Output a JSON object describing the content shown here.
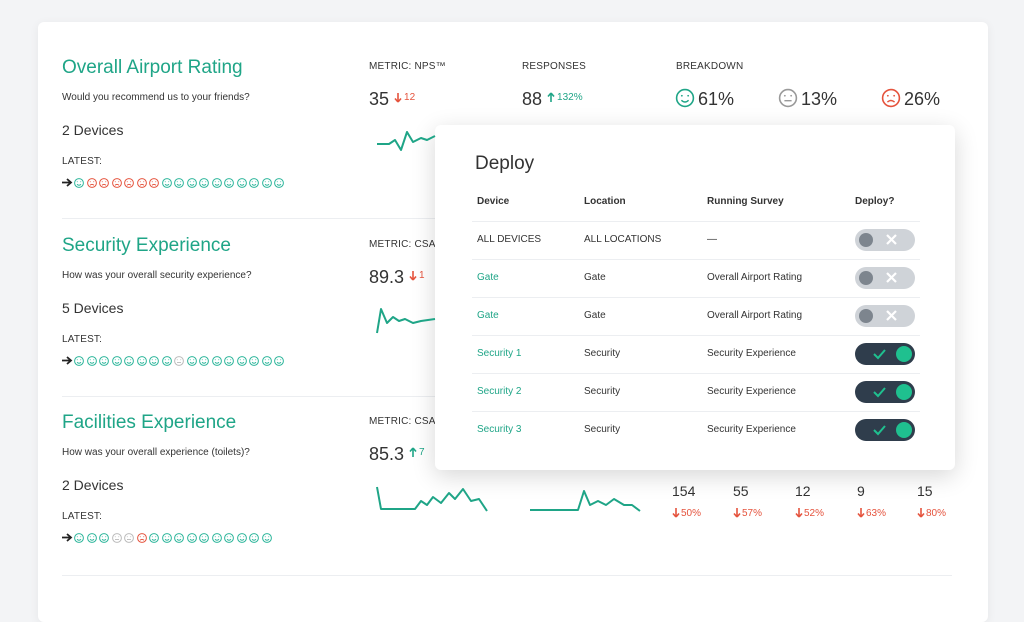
{
  "cards": [
    {
      "title": "Overall Airport Rating",
      "question": "Would you recommend us to your friends?",
      "devices": "2 Devices",
      "latest_label": "LATEST:",
      "latest": [
        "#2bb59a",
        "#e5533d",
        "#e5533d",
        "#e5533d",
        "#e5533d",
        "#e5533d",
        "#e5533d",
        "#2bb59a",
        "#2bb59a",
        "#2bb59a",
        "#2bb59a",
        "#2bb59a",
        "#2bb59a",
        "#2bb59a",
        "#2bb59a",
        "#2bb59a",
        "#2bb59a"
      ],
      "metric_label": "METRIC: NPS™",
      "metric_value": "35",
      "metric_change": "12",
      "metric_trend": "down",
      "responses_label": "RESPONSES",
      "responses_value": "88",
      "responses_change": "132%",
      "responses_trend": "up",
      "breakdown_label": "BREAKDOWN",
      "breakdown": [
        "61%",
        "13%",
        "26%"
      ]
    },
    {
      "title": "Security Experience",
      "question": "How was your overall security experience?",
      "devices": "5 Devices",
      "latest_label": "LATEST:",
      "latest": [
        "#2bb59a",
        "#2bb59a",
        "#2bb59a",
        "#2bb59a",
        "#2bb59a",
        "#2bb59a",
        "#2bb59a",
        "#2bb59a",
        "#bbbbbb",
        "#2bb59a",
        "#2bb59a",
        "#2bb59a",
        "#2bb59a",
        "#2bb59a",
        "#2bb59a",
        "#2bb59a",
        "#2bb59a"
      ],
      "metric_label": "METRIC: CSA",
      "metric_value": "89.3",
      "metric_change": "1",
      "metric_trend": "down"
    },
    {
      "title": "Facilities Experience",
      "question": "How was your overall experience (toilets)?",
      "devices": "2 Devices",
      "latest_label": "LATEST:",
      "latest": [
        "#2bb59a",
        "#2bb59a",
        "#2bb59a",
        "#bbbbbb",
        "#bbbbbb",
        "#e5533d",
        "#2bb59a",
        "#2bb59a",
        "#2bb59a",
        "#2bb59a",
        "#2bb59a",
        "#2bb59a",
        "#2bb59a",
        "#2bb59a",
        "#2bb59a",
        "#2bb59a"
      ],
      "metric_label": "METRIC: CSA",
      "metric_value": "85.3",
      "metric_change": "7",
      "metric_trend": "up",
      "stats": [
        {
          "value": "154",
          "change": "50%"
        },
        {
          "value": "55",
          "change": "57%"
        },
        {
          "value": "12",
          "change": "52%"
        },
        {
          "value": "9",
          "change": "63%"
        },
        {
          "value": "15",
          "change": "80%"
        }
      ]
    }
  ],
  "modal": {
    "title": "Deploy",
    "headers": [
      "Device",
      "Location",
      "Running Survey",
      "Deploy?"
    ],
    "rows": [
      {
        "device": "ALL DEVICES",
        "location": "ALL LOCATIONS",
        "survey": "—",
        "deploy": false
      },
      {
        "device": "Gate",
        "location": "Gate",
        "survey": "Overall Airport Rating",
        "deploy": false
      },
      {
        "device": "Gate",
        "location": "Gate",
        "survey": "Overall Airport Rating",
        "deploy": false
      },
      {
        "device": "Security 1",
        "location": "Security",
        "survey": "Security Experience",
        "deploy": true
      },
      {
        "device": "Security 2",
        "location": "Security",
        "survey": "Security Experience",
        "deploy": true
      },
      {
        "device": "Security 3",
        "location": "Security",
        "survey": "Security Experience",
        "deploy": true
      }
    ]
  }
}
